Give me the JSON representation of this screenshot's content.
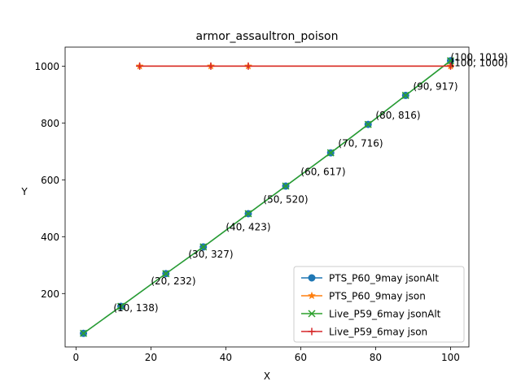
{
  "chart_data": {
    "type": "line",
    "title": "armor_assaultron_poison",
    "xlabel": "X",
    "ylabel": "Y",
    "xlim": [
      -2.9,
      104.9
    ],
    "ylim": [
      12.2,
      1066.8
    ],
    "xticks": [
      0,
      20,
      40,
      60,
      80,
      100
    ],
    "yticks": [
      200,
      400,
      600,
      800,
      1000
    ],
    "legend_position": "lower right",
    "grid": false,
    "series": [
      {
        "name": "PTS_P60_9may jsonAlt",
        "color": "#1f77b4",
        "marker": "o",
        "x": [
          2,
          12,
          24,
          34,
          46,
          56,
          68,
          78,
          88,
          100
        ],
        "y": [
          60,
          155,
          270,
          364,
          481,
          578,
          695,
          795,
          897,
          1019
        ]
      },
      {
        "name": "PTS_P60_9may json",
        "color": "#ff7f0e",
        "marker": "*",
        "x": [
          17,
          36,
          46,
          100
        ],
        "y": [
          1000,
          1000,
          1000,
          1000
        ]
      },
      {
        "name": "Live_P59_6may jsonAlt",
        "color": "#2ca02c",
        "marker": "x",
        "x": [
          2,
          12,
          24,
          34,
          46,
          56,
          68,
          78,
          88,
          100
        ],
        "y": [
          60,
          155,
          270,
          364,
          481,
          578,
          695,
          795,
          897,
          1019
        ]
      },
      {
        "name": "Live_P59_6may json",
        "color": "#d62728",
        "marker": "+",
        "x": [
          17,
          36,
          46,
          100
        ],
        "y": [
          1000,
          1000,
          1000,
          1000
        ]
      }
    ],
    "annotations": [
      {
        "text": "(10, 138)",
        "x": 10,
        "y": 138
      },
      {
        "text": "(20, 232)",
        "x": 20,
        "y": 232
      },
      {
        "text": "(30, 327)",
        "x": 30,
        "y": 327
      },
      {
        "text": "(40, 423)",
        "x": 40,
        "y": 423
      },
      {
        "text": "(50, 520)",
        "x": 50,
        "y": 520
      },
      {
        "text": "(60, 617)",
        "x": 60,
        "y": 617
      },
      {
        "text": "(70, 716)",
        "x": 70,
        "y": 716
      },
      {
        "text": "(80, 816)",
        "x": 80,
        "y": 816
      },
      {
        "text": "(90, 917)",
        "x": 90,
        "y": 917
      },
      {
        "text": "(100, 1019)",
        "x": 100,
        "y": 1019
      },
      {
        "text": "(100, 1000)",
        "x": 100,
        "y": 1000
      }
    ]
  }
}
